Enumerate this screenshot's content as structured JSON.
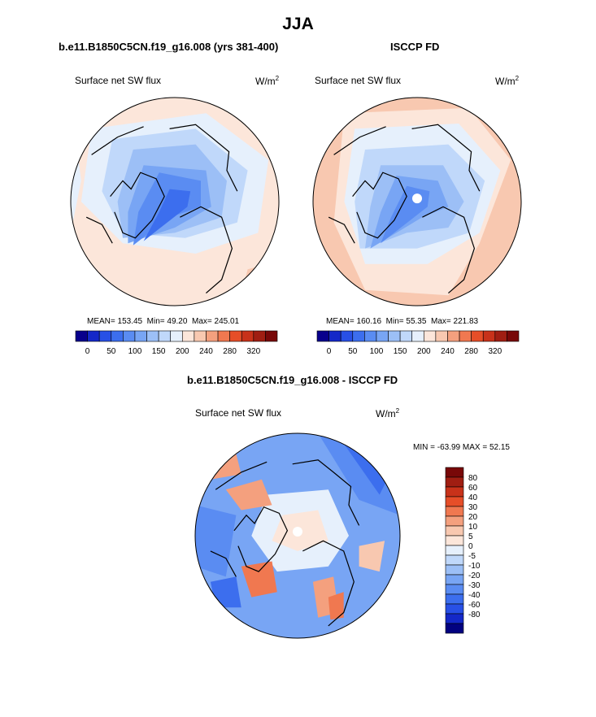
{
  "figure": {
    "main_title": "JJA",
    "left_title": "b.e11.B1850C5CN.f19_g16.008 (yrs 381-400)",
    "right_title": "ISCCP FD",
    "diff_title": "b.e11.B1850C5CN.f19_g16.008 - ISCCP FD",
    "variable": "Surface net SW flux",
    "unit_base": "W/m",
    "unit_exp": "2"
  },
  "colors": {
    "abs_scale": [
      "#08008c",
      "#1428c8",
      "#2850e6",
      "#3c6eee",
      "#5a8cf2",
      "#78a5f4",
      "#9cbff6",
      "#c0d8fa",
      "#e6f0fc",
      "#fce6da",
      "#f8c8b0",
      "#f4a07e",
      "#f07850",
      "#e64e28",
      "#c8321a",
      "#a01e12",
      "#780808"
    ],
    "diff_scale": [
      "#020280",
      "#1428c8",
      "#2850e6",
      "#3c6eee",
      "#5a8cf2",
      "#78a5f4",
      "#9cbff6",
      "#c0d8fa",
      "#e6f0fc",
      "#fce6da",
      "#f8c8b0",
      "#f4a07e",
      "#f07850",
      "#e64e28",
      "#c8321a",
      "#a01e12",
      "#780808"
    ]
  },
  "chart_data": [
    {
      "type": "heatmap",
      "projection": "north polar stereographic",
      "title": "b.e11.B1850C5CN.f19_g16.008 (yrs 381-400)",
      "variable": "Surface net SW flux",
      "unit": "W/m2",
      "stats": {
        "mean_label": "MEAN=",
        "mean": "153.45",
        "min_label": "Min=",
        "min": "49.20",
        "max_label": "Max=",
        "max": "245.01"
      },
      "colorbar": {
        "orientation": "horizontal",
        "tick_labels": [
          "0",
          "50",
          "100",
          "150",
          "200",
          "240",
          "280",
          "320"
        ],
        "levels": [
          0,
          25,
          50,
          75,
          100,
          125,
          150,
          175,
          200,
          220,
          240,
          260,
          280,
          300,
          320
        ]
      }
    },
    {
      "type": "heatmap",
      "projection": "north polar stereographic",
      "title": "ISCCP FD",
      "variable": "Surface net SW flux",
      "unit": "W/m2",
      "stats": {
        "mean_label": "MEAN=",
        "mean": "160.16",
        "min_label": "Min=",
        "min": "55.35",
        "max_label": "Max=",
        "max": "221.83"
      },
      "colorbar": {
        "orientation": "horizontal",
        "tick_labels": [
          "0",
          "50",
          "100",
          "150",
          "200",
          "240",
          "280",
          "320"
        ],
        "levels": [
          0,
          25,
          50,
          75,
          100,
          125,
          150,
          175,
          200,
          220,
          240,
          260,
          280,
          300,
          320
        ]
      }
    },
    {
      "type": "heatmap",
      "projection": "north polar stereographic",
      "title": "b.e11.B1850C5CN.f19_g16.008 - ISCCP FD",
      "variable": "Surface net SW flux",
      "unit": "W/m2",
      "stats": {
        "min_label": "MIN =",
        "min": "-63.99",
        "max_label": "MAX =",
        "max": "52.15"
      },
      "colorbar": {
        "orientation": "vertical",
        "tick_labels": [
          "80",
          "60",
          "40",
          "30",
          "20",
          "10",
          "5",
          "0",
          "-5",
          "-10",
          "-20",
          "-30",
          "-40",
          "-60",
          "-80"
        ]
      }
    }
  ]
}
